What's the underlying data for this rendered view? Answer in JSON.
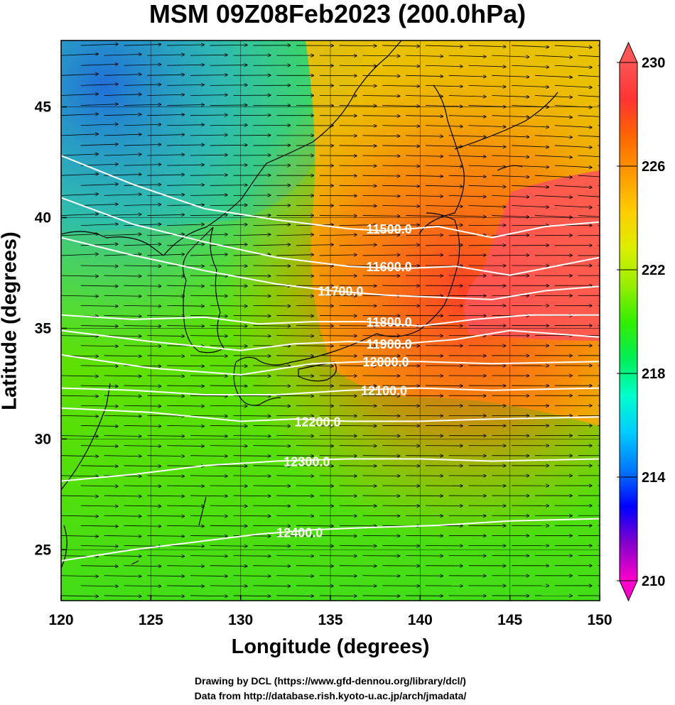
{
  "figure": {
    "title": "MSM 09Z08Feb2023 (200.0hPa)",
    "x_label": "Longitude (degrees)",
    "y_label": "Latitude  (degrees)",
    "credit_line1": "Drawing by DCL (https://www.gfd-dennou.org/library/dcl/)",
    "credit_line2": "Data from http://database.rish.kyoto-u.ac.jp/arch/jmadata/"
  },
  "map_data": {
    "lon_range": [
      120,
      150
    ],
    "lat_range": [
      22.7,
      48
    ],
    "x_ticks": [
      "120",
      "125",
      "130",
      "135",
      "140",
      "145",
      "150"
    ],
    "x_tick_values": [
      120,
      125,
      130,
      135,
      140,
      145,
      150
    ],
    "y_ticks": [
      "25",
      "30",
      "35",
      "40",
      "45"
    ],
    "y_tick_values": [
      25,
      30,
      35,
      40,
      45
    ],
    "grid": true,
    "shaded_field": "temperature (K)",
    "colorbar": {
      "ticks": [
        "210",
        "214",
        "218",
        "222",
        "226",
        "230"
      ],
      "tick_values": [
        210,
        214,
        218,
        222,
        226,
        230
      ],
      "range": [
        210,
        230
      ],
      "colors_low_to_high": [
        "#ff00cc",
        "#8800cc",
        "#0000ff",
        "#0077ff",
        "#00ccff",
        "#00ffcc",
        "#00ee55",
        "#33ee00",
        "#99ee00",
        "#ddee00",
        "#ffcc00",
        "#ff9900",
        "#ff6600",
        "#ff3333",
        "#ff5555"
      ]
    },
    "contours": [
      {
        "label": "11500.0",
        "value": 11500,
        "path_lon_lat": [
          [
            120,
            42.8
          ],
          [
            124,
            41.5
          ],
          [
            128,
            40.4
          ],
          [
            132,
            39.9
          ],
          [
            136,
            39.5
          ],
          [
            138,
            39.4
          ],
          [
            141,
            39.6
          ],
          [
            144,
            39.1
          ],
          [
            147,
            39.6
          ],
          [
            150,
            39.8
          ]
        ],
        "label_at": [
          137.0,
          39.5
        ]
      },
      {
        "label": "11600.0",
        "value": 11600,
        "path_lon_lat": [
          [
            120,
            40.9
          ],
          [
            124,
            39.7
          ],
          [
            128,
            38.9
          ],
          [
            132,
            38.2
          ],
          [
            136,
            37.8
          ],
          [
            139,
            37.7
          ],
          [
            142,
            37.8
          ],
          [
            145,
            37.4
          ],
          [
            150,
            38.2
          ]
        ],
        "label_at": [
          137.0,
          37.8
        ]
      },
      {
        "label": "11700.0",
        "value": 11700,
        "path_lon_lat": [
          [
            120,
            39.1
          ],
          [
            124,
            38.3
          ],
          [
            128,
            37.6
          ],
          [
            132,
            37.0
          ],
          [
            135,
            36.7
          ],
          [
            138,
            36.5
          ],
          [
            141,
            36.4
          ],
          [
            144,
            36.3
          ],
          [
            147,
            36.7
          ],
          [
            150,
            36.9
          ]
        ],
        "label_at": [
          134.3,
          36.7
        ]
      },
      {
        "label": "11800.0",
        "value": 11800,
        "path_lon_lat": [
          [
            120,
            35.6
          ],
          [
            124,
            35.4
          ],
          [
            128,
            35.5
          ],
          [
            131,
            35.2
          ],
          [
            134,
            35.3
          ],
          [
            137,
            35.3
          ],
          [
            140,
            35.1
          ],
          [
            143,
            35.4
          ],
          [
            146,
            35.6
          ],
          [
            150,
            35.6
          ]
        ],
        "label_at": [
          137.0,
          35.3
        ]
      },
      {
        "label": "11900.0",
        "value": 11900,
        "path_lon_lat": [
          [
            120,
            34.9
          ],
          [
            125,
            34.4
          ],
          [
            130,
            34.0
          ],
          [
            133,
            34.3
          ],
          [
            136,
            34.4
          ],
          [
            139,
            34.3
          ],
          [
            142,
            34.5
          ],
          [
            145,
            34.9
          ],
          [
            150,
            34.6
          ]
        ],
        "label_at": [
          137.0,
          34.3
        ]
      },
      {
        "label": "12000.0",
        "value": 12000,
        "path_lon_lat": [
          [
            120,
            33.8
          ],
          [
            125,
            33.2
          ],
          [
            130,
            32.9
          ],
          [
            134,
            33.4
          ],
          [
            137,
            33.5
          ],
          [
            140,
            33.5
          ],
          [
            144,
            33.4
          ],
          [
            150,
            33.5
          ]
        ],
        "label_at": [
          136.8,
          33.5
        ]
      },
      {
        "label": "12100.0",
        "value": 12100,
        "path_lon_lat": [
          [
            120,
            32.3
          ],
          [
            124,
            32.2
          ],
          [
            128,
            32.0
          ],
          [
            132,
            32.0
          ],
          [
            136,
            32.2
          ],
          [
            140,
            32.3
          ],
          [
            144,
            32.2
          ],
          [
            150,
            32.3
          ]
        ],
        "label_at": [
          136.7,
          32.2
        ]
      },
      {
        "label": "12200.0",
        "value": 12200,
        "path_lon_lat": [
          [
            120,
            31.4
          ],
          [
            125,
            31.2
          ],
          [
            130,
            30.8
          ],
          [
            133,
            30.9
          ],
          [
            136,
            30.8
          ],
          [
            140,
            30.8
          ],
          [
            144,
            30.9
          ],
          [
            150,
            31.0
          ]
        ],
        "label_at": [
          133.0,
          30.8
        ]
      },
      {
        "label": "12300.0",
        "value": 12300,
        "path_lon_lat": [
          [
            120,
            28.1
          ],
          [
            124,
            28.4
          ],
          [
            128,
            28.8
          ],
          [
            132,
            29.0
          ],
          [
            136,
            29.1
          ],
          [
            140,
            29.1
          ],
          [
            144,
            29.0
          ],
          [
            150,
            29.1
          ]
        ],
        "label_at": [
          132.4,
          29.0
        ]
      },
      {
        "label": "12400.0",
        "value": 12400,
        "path_lon_lat": [
          [
            120,
            24.5
          ],
          [
            124,
            25.0
          ],
          [
            128,
            25.4
          ],
          [
            131,
            25.7
          ],
          [
            134,
            25.9
          ],
          [
            137,
            26.0
          ],
          [
            141,
            26.1
          ],
          [
            145,
            26.3
          ],
          [
            150,
            26.4
          ]
        ],
        "label_at": [
          132.0,
          25.8
        ]
      }
    ]
  }
}
